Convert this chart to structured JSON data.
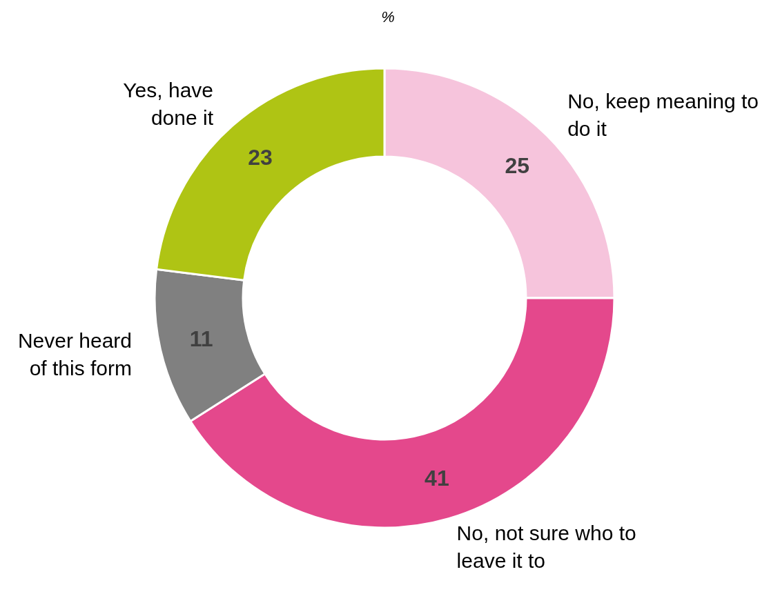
{
  "chart_data": {
    "type": "donut",
    "title": "%",
    "categories": [
      "No, keep meaning to do it",
      "No, not sure who to leave it to",
      "Never heard of this form",
      "Yes, have done it"
    ],
    "values": [
      25,
      41,
      11,
      23
    ],
    "colors": [
      "#f6c4dc",
      "#e4488c",
      "#808080",
      "#afc414"
    ],
    "data_labels": true
  }
}
